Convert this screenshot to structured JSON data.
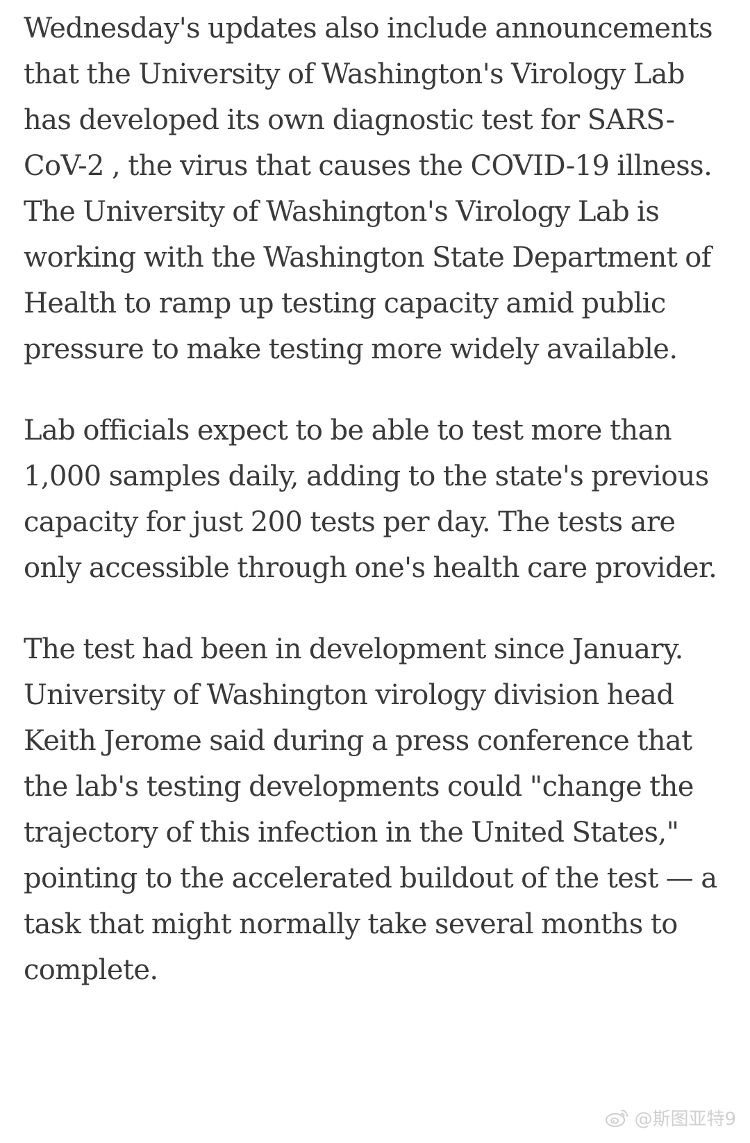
{
  "article": {
    "paragraphs": [
      "Wednesday's updates also include announcements that the University of Washington's Virology Lab has developed its own diagnostic test for SARS-CoV-2 , the virus that causes the COVID-19 illness. The University of Washington's Virology Lab is working with the Washington State Department of Health to ramp up testing capacity amid public pressure to make testing more widely available.",
      "Lab officials expect to be able to test more than 1,000 samples daily, adding to the state's previous capacity for just 200 tests per day. The tests are only accessible through one's health care provider.",
      "The test had been in development since January. University of Washington virology division head Keith Jerome said during a press conference that the lab's testing developments could \"change the trajectory of this infection in the United States,\" pointing to the accelerated buildout of the test — a task that might normally take several months to complete."
    ]
  },
  "watermark": {
    "icon": "weibo-logo-icon",
    "text": "@斯图亚特9"
  }
}
